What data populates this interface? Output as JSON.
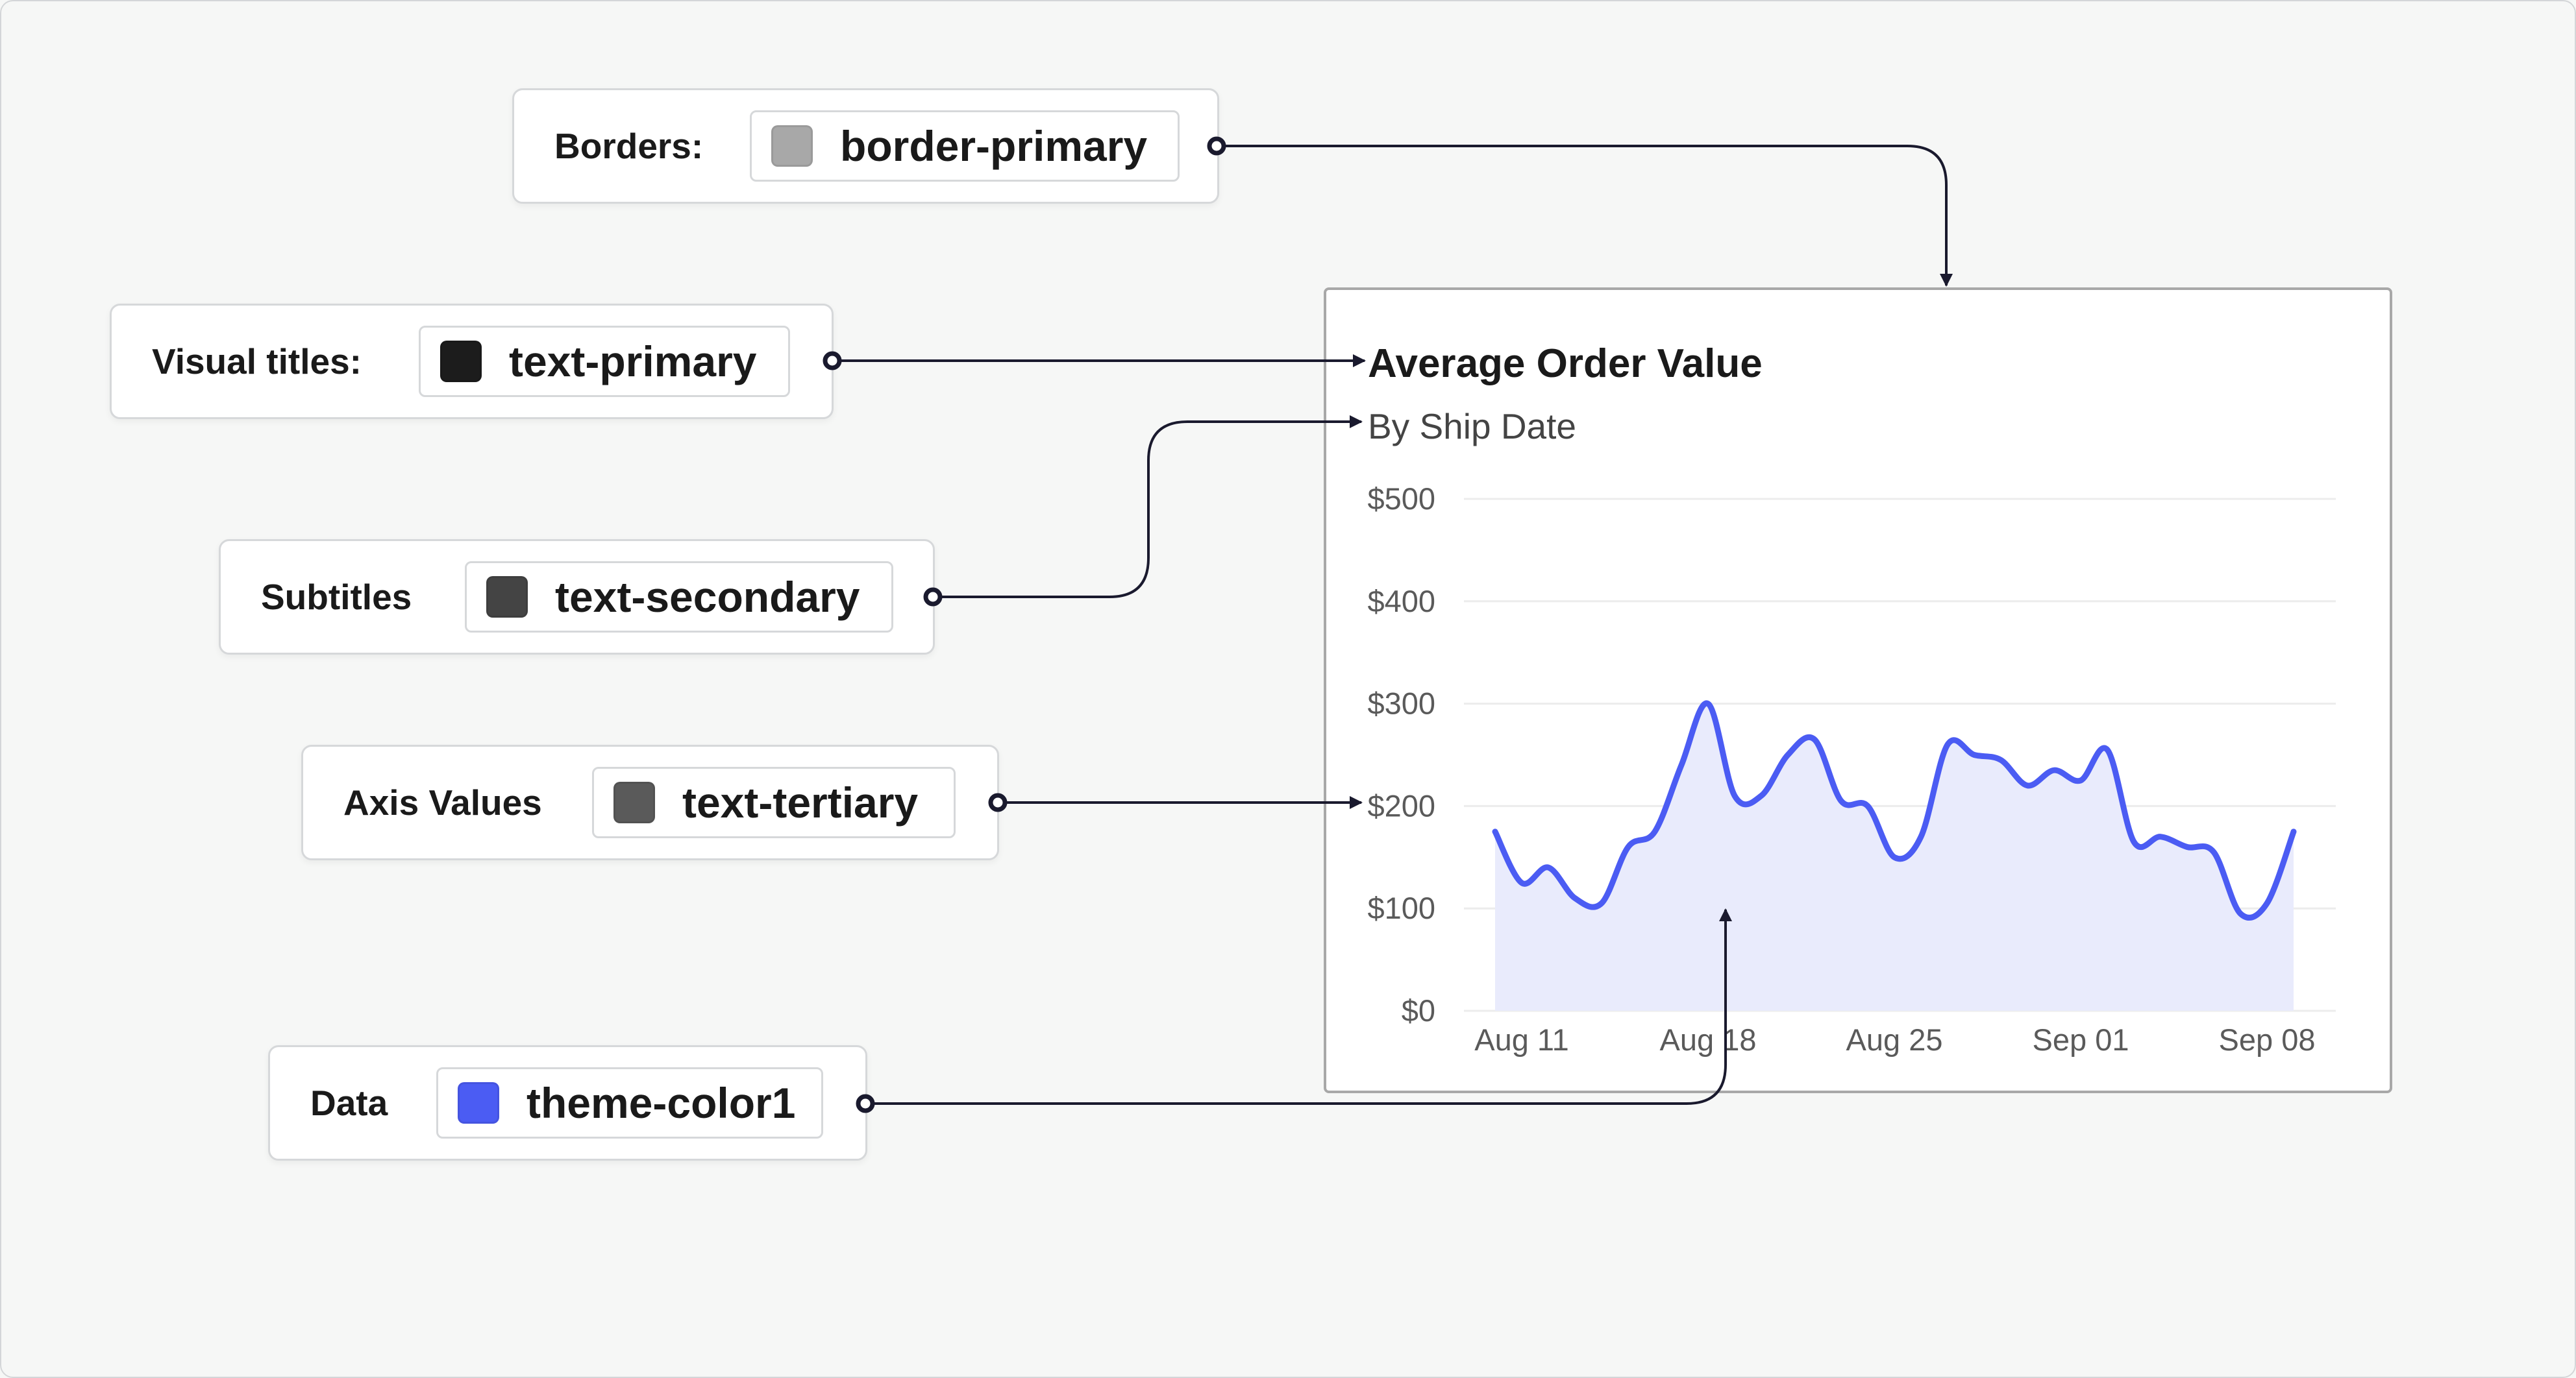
{
  "mappings": [
    {
      "label": "Borders:",
      "token": "border-primary",
      "swatch_color": "#a8a8a8",
      "target": "chart-border"
    },
    {
      "label": "Visual titles:",
      "token": "text-primary",
      "swatch_color": "#1c1c1c",
      "target": "chart-title"
    },
    {
      "label": "Subtitles",
      "token": "text-secondary",
      "swatch_color": "#444444",
      "target": "chart-subtitle"
    },
    {
      "label": "Axis Values",
      "token": "text-tertiary",
      "swatch_color": "#5a5a5a",
      "target": "axis-values"
    },
    {
      "label": "Data",
      "token": "theme-color1",
      "swatch_color": "#4b5cf3",
      "target": "chart-data"
    }
  ],
  "colors": {
    "connector": "#1a1a2e",
    "line": "#4b5cf3",
    "area_fill": "#e9ebfc",
    "gridline": "#ececec"
  },
  "chart_data": {
    "type": "area",
    "title": "Average Order Value",
    "subtitle": "By Ship Date",
    "xlabel": "",
    "ylabel": "",
    "y_ticks": [
      "$0",
      "$100",
      "$200",
      "$300",
      "$400",
      "$500"
    ],
    "y_tick_values": [
      0,
      100,
      200,
      300,
      400,
      500
    ],
    "ylim": [
      0,
      500
    ],
    "x_ticks": [
      "Aug 11",
      "Aug 18",
      "Aug 25",
      "Sep 01",
      "Sep 08"
    ],
    "x_tick_dates": [
      "2024-08-11",
      "2024-08-18",
      "2024-08-25",
      "2024-09-01",
      "2024-09-08"
    ],
    "grid": true,
    "series": [
      {
        "color": "#4b5cf3",
        "x": [
          "2024-08-10",
          "2024-08-11",
          "2024-08-12",
          "2024-08-13",
          "2024-08-14",
          "2024-08-15",
          "2024-08-16",
          "2024-08-17",
          "2024-08-18",
          "2024-08-19",
          "2024-08-20",
          "2024-08-21",
          "2024-08-22",
          "2024-08-23",
          "2024-08-24",
          "2024-08-25",
          "2024-08-26",
          "2024-08-27",
          "2024-08-28",
          "2024-08-29",
          "2024-08-30",
          "2024-08-31",
          "2024-09-01",
          "2024-09-02",
          "2024-09-03",
          "2024-09-04",
          "2024-09-05",
          "2024-09-06",
          "2024-09-07",
          "2024-09-08",
          "2024-09-09"
        ],
        "values": [
          175,
          125,
          140,
          110,
          105,
          160,
          175,
          240,
          300,
          210,
          210,
          250,
          265,
          205,
          200,
          150,
          170,
          260,
          250,
          245,
          220,
          235,
          225,
          255,
          165,
          170,
          160,
          155,
          95,
          105,
          175
        ]
      }
    ]
  }
}
